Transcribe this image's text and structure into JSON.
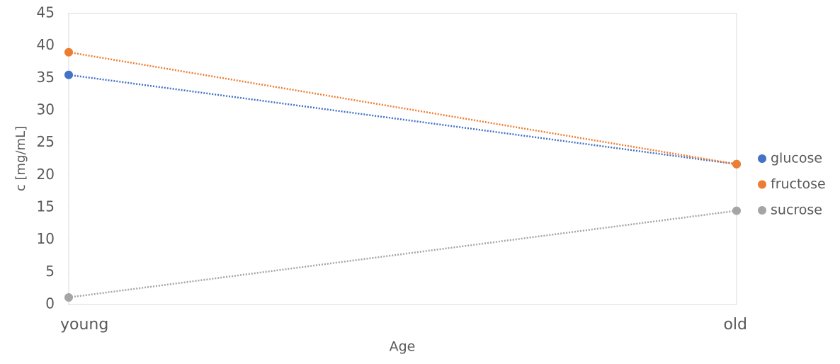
{
  "chart_data": {
    "type": "line",
    "categories": [
      "young",
      "old"
    ],
    "series": [
      {
        "name": "glucose",
        "color": "#4472c4",
        "values": [
          35.5,
          21.7
        ]
      },
      {
        "name": "fructose",
        "color": "#ed7d31",
        "values": [
          39,
          21.7
        ]
      },
      {
        "name": "sucrose",
        "color": "#a5a5a5",
        "values": [
          1.1,
          14.5
        ]
      }
    ],
    "ylim": [
      0,
      45
    ],
    "yticks": [
      0,
      5,
      10,
      15,
      20,
      25,
      30,
      35,
      40,
      45
    ],
    "y_label": "c [mg/mL]",
    "x_label": "Age",
    "legend": "right",
    "line_style": "dotted"
  }
}
